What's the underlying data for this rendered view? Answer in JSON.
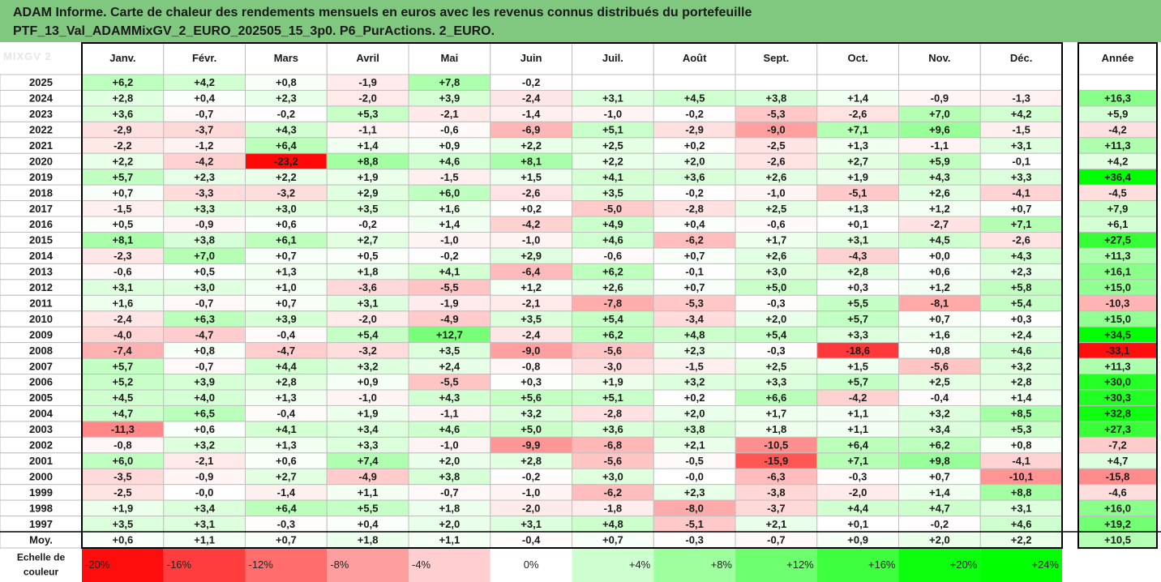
{
  "title": {
    "line1": "ADAM Informe. Carte de chaleur des rendements mensuels en euros avec les revenus connus distribués du portefeuille",
    "line2": "PTF_13_Val_ADAMMixGV_2_EURO_202505_15_3p0. P6_PurActions. 2_EURO."
  },
  "watermark_text": "MIXGV 2",
  "chart_data": {
    "type": "heatmap",
    "months": [
      "Janv.",
      "Févr.",
      "Mars",
      "Avril",
      "Mai",
      "Juin",
      "Juil.",
      "Août",
      "Sept.",
      "Oct.",
      "Nov.",
      "Déc."
    ],
    "year_header": "Année",
    "rows": [
      {
        "year": "2025",
        "months": [
          "+6,2",
          "+4,2",
          "+0,8",
          "-1,9",
          "+7,8",
          "-0,2",
          null,
          null,
          null,
          null,
          null,
          null
        ],
        "total": null
      },
      {
        "year": "2024",
        "months": [
          "+2,8",
          "+0,4",
          "+2,3",
          "-2,0",
          "+3,9",
          "-2,4",
          "+3,1",
          "+4,5",
          "+3,8",
          "+1,4",
          "-0,9",
          "-1,3"
        ],
        "total": "+16,3"
      },
      {
        "year": "2023",
        "months": [
          "+3,6",
          "-0,7",
          "-0,2",
          "+5,3",
          "-2,1",
          "-1,4",
          "-1,0",
          "-0,2",
          "-5,3",
          "-2,6",
          "+7,0",
          "+4,2"
        ],
        "total": "+5,9"
      },
      {
        "year": "2022",
        "months": [
          "-2,9",
          "-3,7",
          "+4,3",
          "-1,1",
          "-0,6",
          "-6,9",
          "+5,1",
          "-2,9",
          "-9,0",
          "+7,1",
          "+9,6",
          "-1,5"
        ],
        "total": "-4,2"
      },
      {
        "year": "2021",
        "months": [
          "-2,2",
          "-1,2",
          "+6,4",
          "+1,4",
          "+0,9",
          "+2,2",
          "+2,5",
          "+0,2",
          "-2,5",
          "+1,3",
          "-1,1",
          "+3,1"
        ],
        "total": "+11,3"
      },
      {
        "year": "2020",
        "months": [
          "+2,2",
          "-4,2",
          "-23,2",
          "+8,8",
          "+4,6",
          "+8,1",
          "+2,2",
          "+2,0",
          "-2,6",
          "+2,7",
          "+5,9",
          "-0,1"
        ],
        "total": "+4,2"
      },
      {
        "year": "2019",
        "months": [
          "+5,7",
          "+2,3",
          "+2,2",
          "+1,9",
          "-1,5",
          "+1,5",
          "+4,1",
          "+3,6",
          "+2,6",
          "+1,9",
          "+4,3",
          "+3,3"
        ],
        "total": "+36,4"
      },
      {
        "year": "2018",
        "months": [
          "+0,7",
          "-3,3",
          "-3,2",
          "+2,9",
          "+6,0",
          "-2,6",
          "+3,5",
          "-0,2",
          "-1,0",
          "-5,1",
          "+2,6",
          "-4,1"
        ],
        "total": "-4,5"
      },
      {
        "year": "2017",
        "months": [
          "-1,5",
          "+3,3",
          "+3,0",
          "+3,5",
          "+1,6",
          "+0,2",
          "-5,0",
          "-2,8",
          "+2,5",
          "+1,3",
          "+1,2",
          "+0,7"
        ],
        "total": "+7,9"
      },
      {
        "year": "2016",
        "months": [
          "+0,5",
          "-0,9",
          "+0,6",
          "-0,2",
          "+1,4",
          "-4,2",
          "+4,9",
          "+0,4",
          "-0,6",
          "+0,1",
          "-2,7",
          "+7,1"
        ],
        "total": "+6,1"
      },
      {
        "year": "2015",
        "months": [
          "+8,1",
          "+3,8",
          "+6,1",
          "+2,7",
          "-1,0",
          "-1,0",
          "+4,6",
          "-6,2",
          "+1,7",
          "+3,1",
          "+4,5",
          "-2,6"
        ],
        "total": "+27,5"
      },
      {
        "year": "2014",
        "months": [
          "-2,3",
          "+7,0",
          "+0,7",
          "+0,5",
          "-0,2",
          "+2,9",
          "-0,6",
          "+0,7",
          "+2,6",
          "-4,3",
          "+0,0",
          "+4,3"
        ],
        "total": "+11,3"
      },
      {
        "year": "2013",
        "months": [
          "-0,6",
          "+0,5",
          "+1,3",
          "+1,8",
          "+4,1",
          "-6,4",
          "+6,2",
          "-0,1",
          "+3,0",
          "+2,8",
          "+0,6",
          "+2,3"
        ],
        "total": "+16,1"
      },
      {
        "year": "2012",
        "months": [
          "+3,1",
          "+3,0",
          "+1,0",
          "-3,6",
          "-5,5",
          "+1,2",
          "+2,6",
          "+0,7",
          "+5,0",
          "+0,3",
          "+1,2",
          "+5,8"
        ],
        "total": "+15,0"
      },
      {
        "year": "2011",
        "months": [
          "+1,6",
          "-0,7",
          "+0,7",
          "+3,1",
          "-1,9",
          "-2,1",
          "-7,8",
          "-5,3",
          "-0,3",
          "+5,5",
          "-8,1",
          "+5,4"
        ],
        "total": "-10,3"
      },
      {
        "year": "2010",
        "months": [
          "-2,4",
          "+6,3",
          "+3,9",
          "-2,0",
          "-4,9",
          "+3,5",
          "+5,4",
          "-3,4",
          "+2,0",
          "+5,7",
          "+0,7",
          "+0,3"
        ],
        "total": "+15,0"
      },
      {
        "year": "2009",
        "months": [
          "-4,0",
          "-4,7",
          "-0,4",
          "+5,4",
          "+12,7",
          "-2,4",
          "+6,2",
          "+4,8",
          "+5,4",
          "+3,3",
          "+1,6",
          "+2,4"
        ],
        "total": "+34,5"
      },
      {
        "year": "2008",
        "months": [
          "-7,4",
          "+0,8",
          "-4,7",
          "-3,2",
          "+3,5",
          "-9,0",
          "-5,6",
          "+2,3",
          "-0,3",
          "-18,6",
          "+0,8",
          "+4,6"
        ],
        "total": "-33,1"
      },
      {
        "year": "2007",
        "months": [
          "+5,7",
          "-0,7",
          "+4,4",
          "+3,2",
          "+2,4",
          "-0,8",
          "-3,0",
          "-1,5",
          "+2,5",
          "+1,5",
          "-5,6",
          "+3,2"
        ],
        "total": "+11,3"
      },
      {
        "year": "2006",
        "months": [
          "+5,2",
          "+3,9",
          "+2,8",
          "+0,9",
          "-5,5",
          "+0,3",
          "+1,9",
          "+3,2",
          "+3,3",
          "+5,7",
          "+2,5",
          "+2,8"
        ],
        "total": "+30,0"
      },
      {
        "year": "2005",
        "months": [
          "+4,5",
          "+4,0",
          "+1,3",
          "-1,0",
          "+4,3",
          "+5,6",
          "+5,1",
          "+0,2",
          "+6,6",
          "-4,2",
          "-0,4",
          "+1,4"
        ],
        "total": "+30,3"
      },
      {
        "year": "2004",
        "months": [
          "+4,7",
          "+6,5",
          "-0,4",
          "+1,9",
          "-1,1",
          "+3,2",
          "-2,8",
          "+2,0",
          "+1,7",
          "+1,1",
          "+3,2",
          "+8,5"
        ],
        "total": "+32,8"
      },
      {
        "year": "2003",
        "months": [
          "-11,3",
          "+0,6",
          "+4,1",
          "+3,4",
          "+4,6",
          "+5,0",
          "+3,6",
          "+3,8",
          "+1,8",
          "+1,1",
          "+3,4",
          "+5,3"
        ],
        "total": "+27,3"
      },
      {
        "year": "2002",
        "months": [
          "-0,8",
          "+3,2",
          "+1,3",
          "+3,3",
          "-1,0",
          "-9,9",
          "-6,8",
          "+2,1",
          "-10,5",
          "+6,4",
          "+6,2",
          "+0,8"
        ],
        "total": "-7,2"
      },
      {
        "year": "2001",
        "months": [
          "+6,0",
          "-2,1",
          "+0,6",
          "+7,4",
          "+2,0",
          "+2,8",
          "-5,6",
          "-0,5",
          "-15,9",
          "+7,1",
          "+9,8",
          "-4,1"
        ],
        "total": "+4,7"
      },
      {
        "year": "2000",
        "months": [
          "-3,5",
          "-0,9",
          "+2,7",
          "-4,9",
          "+3,8",
          "-0,2",
          "+3,0",
          "-0,0",
          "-6,3",
          "-0,3",
          "+0,7",
          "-10,1"
        ],
        "total": "-15,8"
      },
      {
        "year": "1999",
        "months": [
          "-2,5",
          "-0,0",
          "-1,4",
          "+1,1",
          "-0,7",
          "-1,0",
          "-6,2",
          "+2,3",
          "-3,8",
          "-2,0",
          "+1,4",
          "+8,8"
        ],
        "total": "-4,6"
      },
      {
        "year": "1998",
        "months": [
          "+1,9",
          "+3,4",
          "+6,4",
          "+5,5",
          "+1,8",
          "-2,0",
          "-1,8",
          "-8,0",
          "-3,7",
          "+4,4",
          "+4,7",
          "+3,1"
        ],
        "total": "+16,0"
      },
      {
        "year": "1997",
        "months": [
          "+3,5",
          "+3,1",
          "-0,3",
          "+0,4",
          "+2,0",
          "+3,1",
          "+4,8",
          "-5,1",
          "+2,1",
          "+0,1",
          "-0,2",
          "+4,6"
        ],
        "total": "+19,2"
      }
    ],
    "average_row": {
      "label": "Moy.",
      "months": [
        "+0,6",
        "+1,1",
        "+0,7",
        "+1,8",
        "+1,1",
        "-0,4",
        "+0,7",
        "-0,3",
        "-0,7",
        "+0,9",
        "+2,0",
        "+2,2"
      ],
      "total": "+10,5"
    },
    "color_scale": {
      "label_line1": "Echelle de",
      "label_line2": "couleur",
      "stops": [
        {
          "label": "-20%",
          "value": -20
        },
        {
          "label": "-16%",
          "value": -16
        },
        {
          "label": "-12%",
          "value": -12
        },
        {
          "label": "-8%",
          "value": -8
        },
        {
          "label": "-4%",
          "value": -4
        },
        {
          "label": "0%",
          "value": 0
        },
        {
          "label": "+4%",
          "value": 4
        },
        {
          "label": "+8%",
          "value": 8
        },
        {
          "label": "+12%",
          "value": 12
        },
        {
          "label": "+16%",
          "value": 16
        },
        {
          "label": "+20%",
          "value": 20
        },
        {
          "label": "+24%",
          "value": 24
        }
      ]
    },
    "colors": {
      "negative_max": "#ff0000",
      "neutral": "#ffffff",
      "positive_max": "#00ff00",
      "title_background": "#80c880",
      "grid": "#bfbfbf",
      "border": "#000000"
    }
  }
}
